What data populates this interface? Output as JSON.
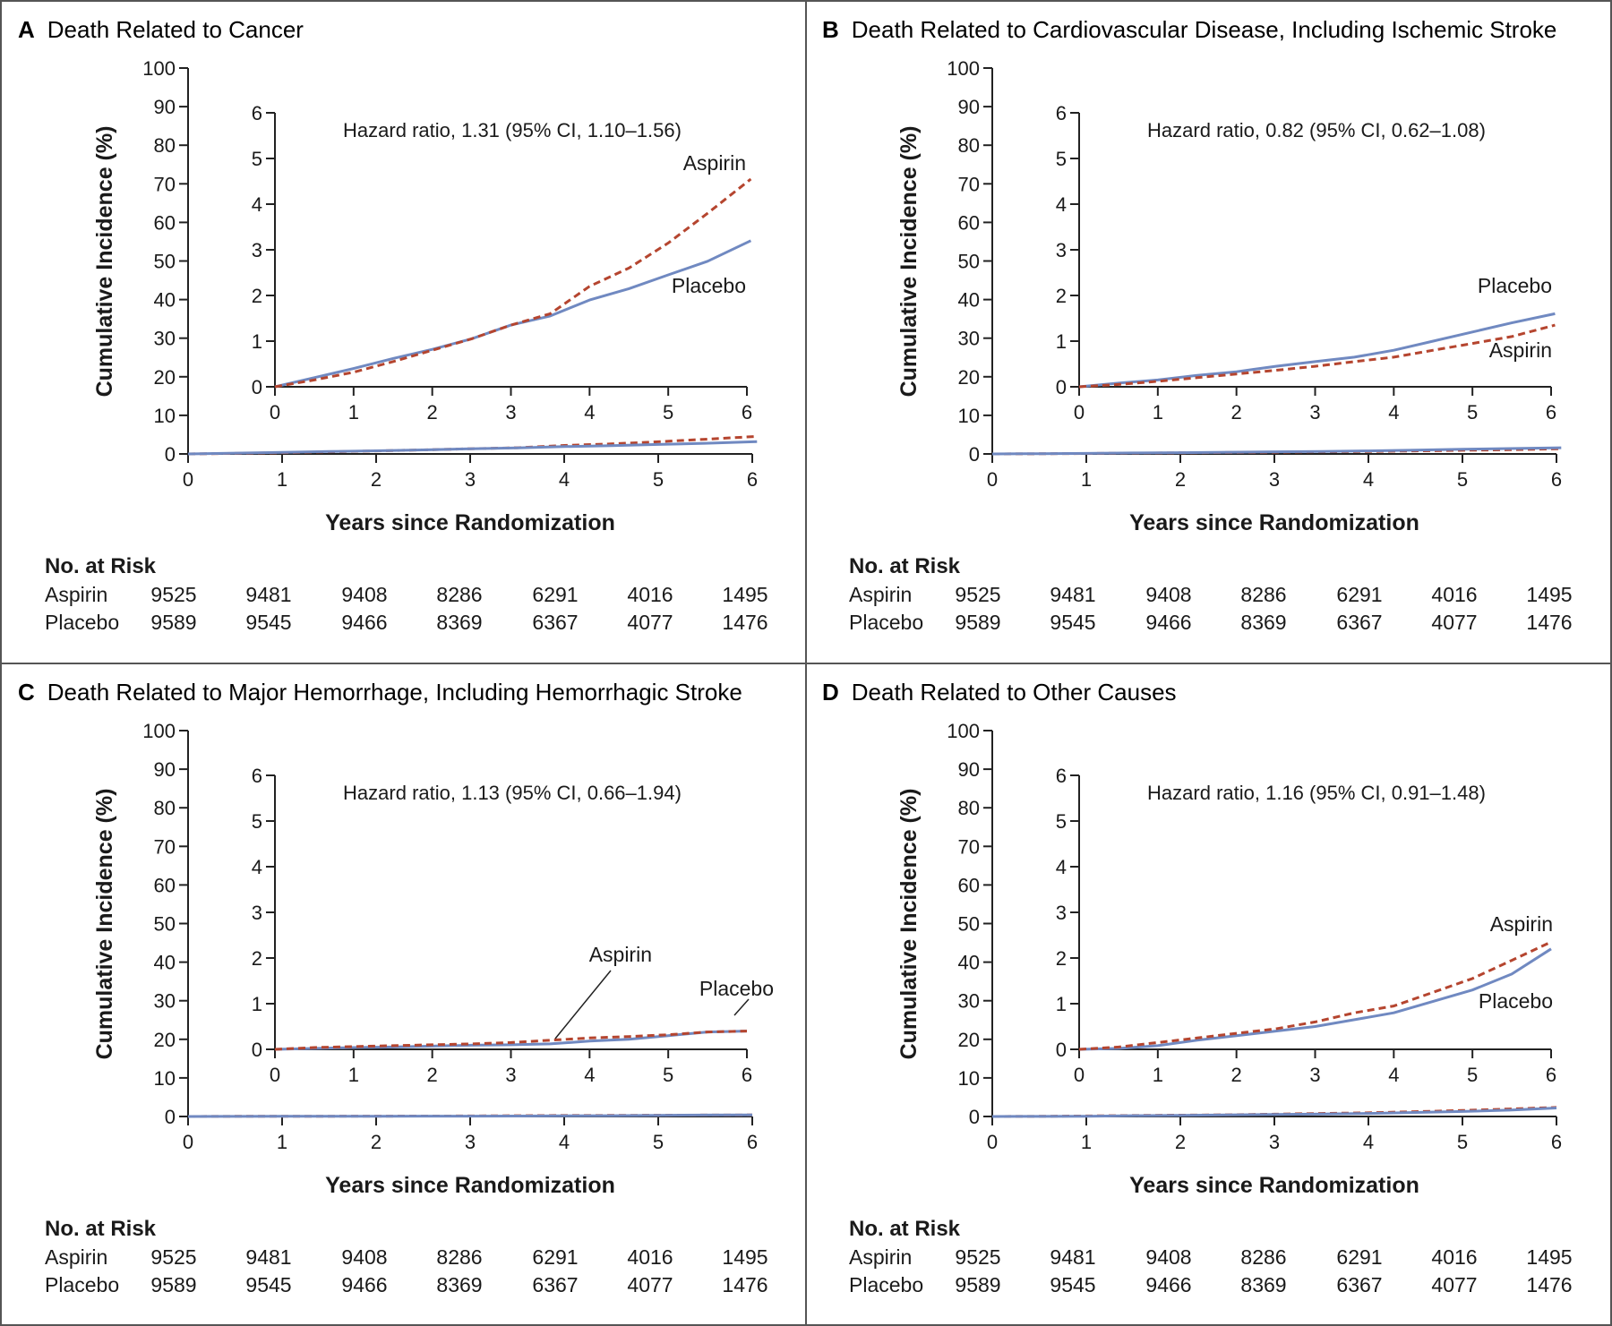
{
  "colors": {
    "aspirin": "#b5452f",
    "placebo": "#7089c1",
    "frame": "#555555",
    "axis": "#222222"
  },
  "axis_labels": {
    "x": "Years since Randomization",
    "y": "Cumulative Incidence (%)"
  },
  "risk_table": {
    "heading": "No. at Risk",
    "rows": [
      {
        "label": "Aspirin",
        "values": [
          "9525",
          "9481",
          "9408",
          "8286",
          "6291",
          "4016",
          "1495"
        ]
      },
      {
        "label": "Placebo",
        "values": [
          "9589",
          "9545",
          "9466",
          "8369",
          "6367",
          "4077",
          "1476"
        ]
      }
    ]
  },
  "chart_data": [
    {
      "type": "line",
      "panel": "A",
      "title": "Death Related to Cancer",
      "xlabel": "Years since Randomization",
      "ylabel": "Cumulative Incidence (%)",
      "xlim": [
        0,
        6
      ],
      "ylim": [
        0,
        100
      ],
      "xticks": [
        "0",
        "1",
        "2",
        "3",
        "4",
        "5",
        "6"
      ],
      "yticks": [
        "0",
        "10",
        "20",
        "30",
        "40",
        "50",
        "60",
        "70",
        "80",
        "90",
        "100"
      ],
      "inset": {
        "xlim": [
          0,
          6
        ],
        "ylim": [
          0,
          6
        ],
        "xticks": [
          "0",
          "1",
          "2",
          "3",
          "4",
          "5",
          "6"
        ],
        "yticks": [
          "0",
          "1",
          "2",
          "3",
          "4",
          "5",
          "6"
        ]
      },
      "annotation": "Hazard ratio, 1.31 (95% CI, 1.10–1.56)",
      "labels": {
        "aspirin": "Aspirin",
        "placebo": "Placebo"
      },
      "x": [
        0,
        0.5,
        1,
        1.5,
        2,
        2.5,
        3,
        3.5,
        4,
        4.5,
        5,
        5.5,
        6.05
      ],
      "series": [
        {
          "name": "Aspirin",
          "style": "dashed",
          "values": [
            0,
            0.15,
            0.32,
            0.55,
            0.8,
            1.05,
            1.35,
            1.6,
            2.2,
            2.6,
            3.15,
            3.8,
            4.55
          ]
        },
        {
          "name": "Placebo",
          "style": "solid",
          "values": [
            0,
            0.2,
            0.4,
            0.62,
            0.82,
            1.05,
            1.35,
            1.55,
            1.9,
            2.15,
            2.45,
            2.75,
            3.2
          ]
        }
      ]
    },
    {
      "type": "line",
      "panel": "B",
      "title": "Death Related to Cardiovascular Disease, Including Ischemic Stroke",
      "xlabel": "Years since Randomization",
      "ylabel": "Cumulative Incidence (%)",
      "xlim": [
        0,
        6
      ],
      "ylim": [
        0,
        100
      ],
      "xticks": [
        "0",
        "1",
        "2",
        "3",
        "4",
        "5",
        "6"
      ],
      "yticks": [
        "0",
        "10",
        "20",
        "30",
        "40",
        "50",
        "60",
        "70",
        "80",
        "90",
        "100"
      ],
      "inset": {
        "xlim": [
          0,
          6
        ],
        "ylim": [
          0,
          6
        ],
        "xticks": [
          "0",
          "1",
          "2",
          "3",
          "4",
          "5",
          "6"
        ],
        "yticks": [
          "0",
          "1",
          "2",
          "3",
          "4",
          "5",
          "6"
        ]
      },
      "annotation": "Hazard ratio, 0.82 (95% CI, 0.62–1.08)",
      "labels": {
        "aspirin": "Aspirin",
        "placebo": "Placebo"
      },
      "x": [
        0,
        0.5,
        1,
        1.5,
        2,
        2.5,
        3,
        3.5,
        4,
        4.5,
        5,
        5.5,
        6.05
      ],
      "series": [
        {
          "name": "Aspirin",
          "style": "dashed",
          "values": [
            0,
            0.05,
            0.12,
            0.2,
            0.28,
            0.36,
            0.45,
            0.55,
            0.65,
            0.8,
            0.95,
            1.1,
            1.35
          ]
        },
        {
          "name": "Placebo",
          "style": "solid",
          "values": [
            0,
            0.08,
            0.15,
            0.25,
            0.33,
            0.45,
            0.55,
            0.65,
            0.8,
            1.0,
            1.2,
            1.4,
            1.6
          ]
        }
      ]
    },
    {
      "type": "line",
      "panel": "C",
      "title": "Death Related to Major Hemorrhage, Including Hemorrhagic Stroke",
      "xlabel": "Years since Randomization",
      "ylabel": "Cumulative Incidence (%)",
      "xlim": [
        0,
        6
      ],
      "ylim": [
        0,
        100
      ],
      "xticks": [
        "0",
        "1",
        "2",
        "3",
        "4",
        "5",
        "6"
      ],
      "yticks": [
        "0",
        "10",
        "20",
        "30",
        "40",
        "50",
        "60",
        "70",
        "80",
        "90",
        "100"
      ],
      "inset": {
        "xlim": [
          0,
          6
        ],
        "ylim": [
          0,
          6
        ],
        "xticks": [
          "0",
          "1",
          "2",
          "3",
          "4",
          "5",
          "6"
        ],
        "yticks": [
          "0",
          "1",
          "2",
          "3",
          "4",
          "5",
          "6"
        ]
      },
      "annotation": "Hazard ratio, 1.13 (95% CI, 0.66–1.94)",
      "labels": {
        "aspirin": "Aspirin",
        "placebo": "Placebo"
      },
      "x": [
        0,
        0.5,
        1,
        1.5,
        2,
        2.5,
        3,
        3.5,
        4,
        4.5,
        5,
        5.5,
        6.0
      ],
      "series": [
        {
          "name": "Aspirin",
          "style": "dashed",
          "values": [
            0,
            0.04,
            0.06,
            0.08,
            0.1,
            0.12,
            0.15,
            0.2,
            0.25,
            0.28,
            0.32,
            0.38,
            0.4
          ]
        },
        {
          "name": "Placebo",
          "style": "solid",
          "values": [
            0,
            0.02,
            0.04,
            0.05,
            0.07,
            0.09,
            0.1,
            0.12,
            0.18,
            0.22,
            0.3,
            0.38,
            0.4
          ]
        }
      ]
    },
    {
      "type": "line",
      "panel": "D",
      "title": "Death Related to Other Causes",
      "xlabel": "Years since Randomization",
      "ylabel": "Cumulative Incidence (%)",
      "xlim": [
        0,
        6
      ],
      "ylim": [
        0,
        100
      ],
      "xticks": [
        "0",
        "1",
        "2",
        "3",
        "4",
        "5",
        "6"
      ],
      "yticks": [
        "0",
        "10",
        "20",
        "30",
        "40",
        "50",
        "60",
        "70",
        "80",
        "90",
        "100"
      ],
      "inset": {
        "xlim": [
          0,
          6
        ],
        "ylim": [
          0,
          6
        ],
        "xticks": [
          "0",
          "1",
          "2",
          "3",
          "4",
          "5",
          "6"
        ],
        "yticks": [
          "0",
          "1",
          "2",
          "3",
          "4",
          "5",
          "6"
        ]
      },
      "annotation": "Hazard ratio, 1.16 (95% CI, 0.91–1.48)",
      "labels": {
        "aspirin": "Aspirin",
        "placebo": "Placebo"
      },
      "x": [
        0,
        0.5,
        1,
        1.5,
        2,
        2.5,
        3,
        3.5,
        4,
        4.5,
        5,
        5.5,
        6.0
      ],
      "series": [
        {
          "name": "Aspirin",
          "style": "dashed",
          "values": [
            0,
            0.05,
            0.15,
            0.25,
            0.35,
            0.45,
            0.6,
            0.8,
            0.95,
            1.25,
            1.55,
            1.95,
            2.35
          ]
        },
        {
          "name": "Placebo",
          "style": "solid",
          "values": [
            0,
            0.02,
            0.08,
            0.2,
            0.3,
            0.4,
            0.5,
            0.65,
            0.8,
            1.05,
            1.3,
            1.65,
            2.2
          ]
        }
      ]
    }
  ]
}
